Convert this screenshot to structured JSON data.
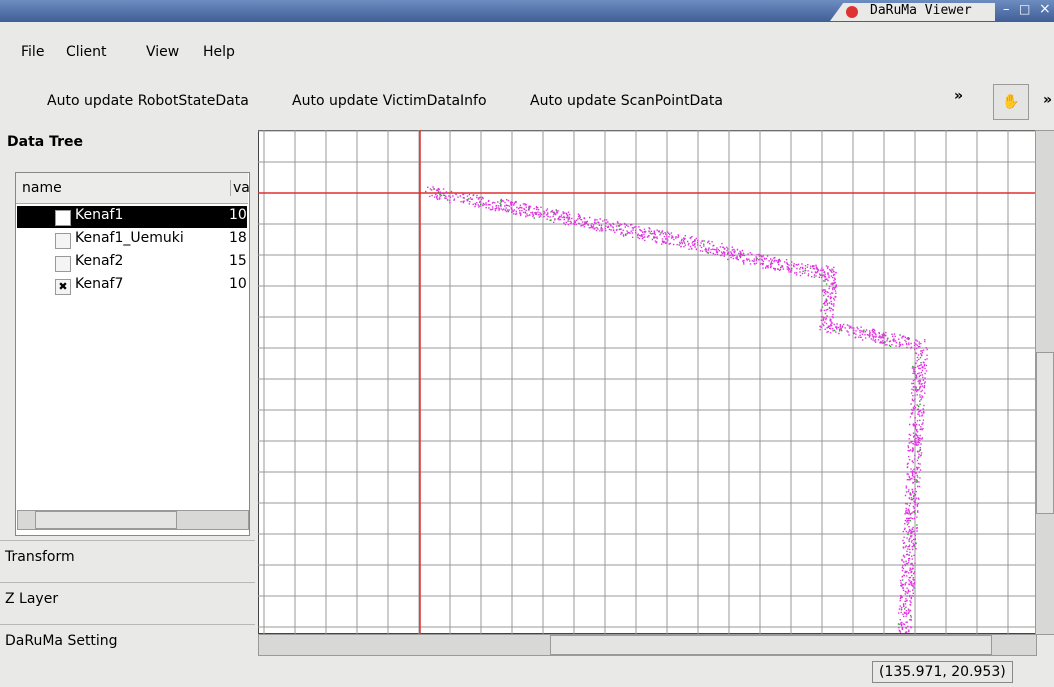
{
  "window": {
    "title": "DaRuMa Viewer",
    "controls": [
      "–",
      "□",
      "×"
    ]
  },
  "menu": [
    "File",
    "Client",
    "View",
    "Help"
  ],
  "toolbar": {
    "buttons": [
      "Auto update RobotStateData",
      "Auto update VictimDataInfo",
      "Auto update ScanPointData"
    ],
    "overflow": "»",
    "overflow2": "»"
  },
  "left_panel": {
    "data_tree": {
      "title": "Data Tree",
      "columns": [
        "name",
        "va"
      ],
      "rows": [
        [
          "Kenaf1",
          "10"
        ],
        [
          "Kenaf1_Uemuki",
          "18"
        ],
        [
          "Kenaf2",
          "15"
        ],
        [
          "Kenaf7",
          "10"
        ]
      ]
    },
    "sections": [
      "Transform",
      "Z Layer",
      "DaRuMa Setting"
    ]
  },
  "status": {
    "coordinates": "(135.971, 20.953)"
  }
}
